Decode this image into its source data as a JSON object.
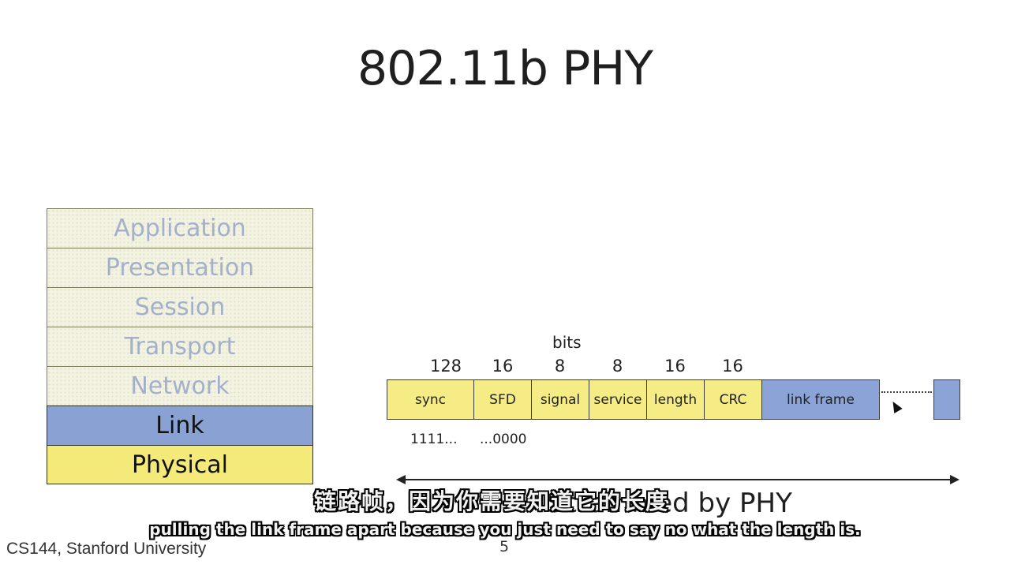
{
  "title": "802.11b PHY",
  "stack": {
    "layers": [
      "Application",
      "Presentation",
      "Session",
      "Transport",
      "Network",
      "Link",
      "Physical"
    ]
  },
  "frame": {
    "bits_label": "bits",
    "fields": [
      {
        "label": "sync",
        "bits": "128"
      },
      {
        "label": "SFD",
        "bits": "16"
      },
      {
        "label": "signal",
        "bits": "8"
      },
      {
        "label": "service",
        "bits": "8"
      },
      {
        "label": "length",
        "bits": "16"
      },
      {
        "label": "CRC",
        "bits": "16"
      },
      {
        "label": "link frame",
        "bits": ""
      }
    ],
    "sync_pattern": "1111...",
    "sfd_pattern": "...0000",
    "scrambled_label": "Scrambled by PHY"
  },
  "subtitles": {
    "chinese": "链路帧，因为你需要知道它的长度",
    "english": "pulling the link frame apart because you just need to say no what the length is."
  },
  "footer": {
    "course": "CS144, Stanford University",
    "page": "5"
  },
  "colors": {
    "link_blue": "#8ba3d6",
    "physical_yellow": "#f6ec86"
  }
}
